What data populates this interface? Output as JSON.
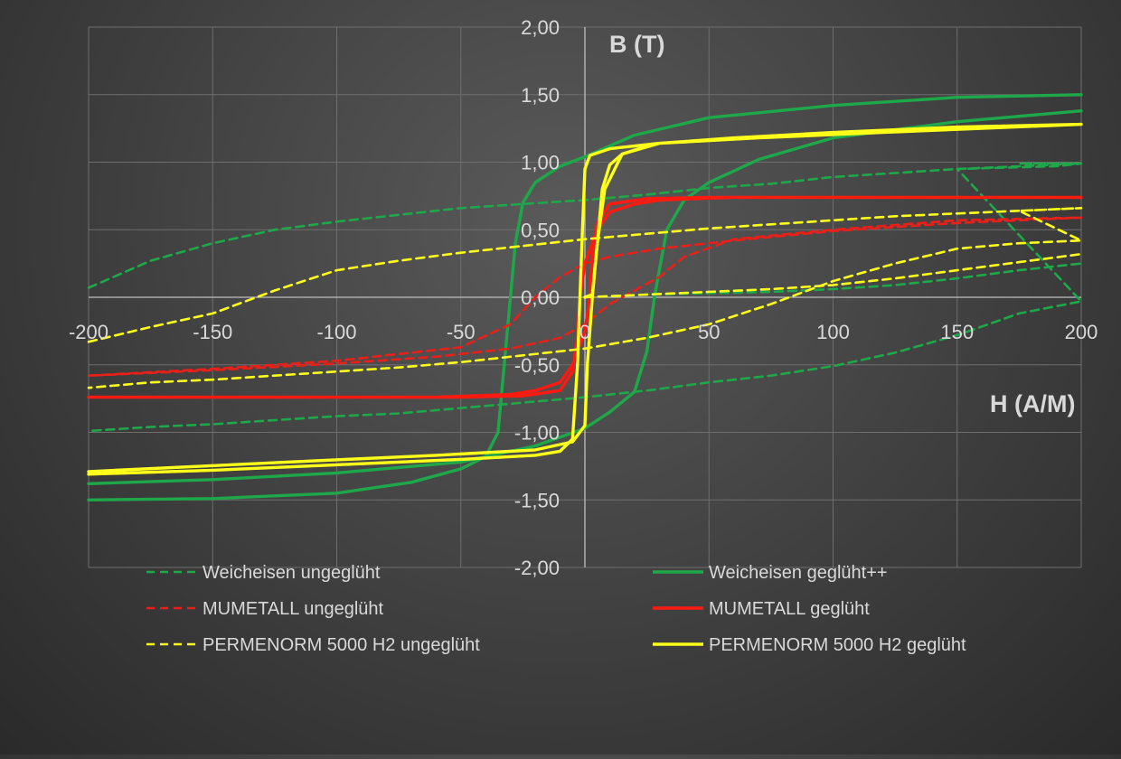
{
  "chart_data": {
    "type": "line",
    "title": "",
    "xlabel": "H (A/M)",
    "ylabel": "B (T)",
    "xlim": [
      -200,
      200
    ],
    "ylim": [
      -2,
      2
    ],
    "x_ticks": [
      -200,
      -150,
      -100,
      -50,
      0,
      50,
      100,
      150,
      200
    ],
    "x_tick_labels": [
      "-200",
      "-150",
      "-100",
      "-50",
      "0",
      "50",
      "100",
      "150",
      "200"
    ],
    "y_ticks": [
      2,
      1.5,
      1,
      0.5,
      0,
      -0.5,
      -1,
      -1.5,
      -2
    ],
    "y_tick_labels": [
      "2,00",
      "1,50",
      "1,00",
      "0,50",
      "0,00",
      "-0,50",
      "-1,00",
      "-1,50",
      "-2,00"
    ],
    "grid": true,
    "legend_position": "bottom",
    "series": [
      {
        "name": "Weicheisen ungeglüht",
        "color": "#1ea84a",
        "dash": "dashed",
        "points": [
          [
            -200,
            0.07
          ],
          [
            -175,
            0.27
          ],
          [
            -150,
            0.4
          ],
          [
            -125,
            0.5
          ],
          [
            -100,
            0.56
          ],
          [
            -75,
            0.61
          ],
          [
            -50,
            0.66
          ],
          [
            -25,
            0.69
          ],
          [
            0,
            0.72
          ],
          [
            25,
            0.76
          ],
          [
            50,
            0.81
          ],
          [
            75,
            0.84
          ],
          [
            100,
            0.89
          ],
          [
            125,
            0.92
          ],
          [
            150,
            0.95
          ],
          [
            175,
            0.97
          ],
          [
            200,
            0.99
          ],
          [
            175,
            0.99
          ],
          [
            200,
            0.99
          ],
          [
            190,
            0.97
          ],
          [
            150,
            0.95
          ],
          [
            200,
            -0.03
          ],
          [
            175,
            -0.12
          ],
          [
            150,
            -0.28
          ],
          [
            125,
            -0.41
          ],
          [
            100,
            -0.51
          ],
          [
            75,
            -0.58
          ],
          [
            50,
            -0.63
          ],
          [
            25,
            -0.69
          ],
          [
            0,
            -0.74
          ],
          [
            -25,
            -0.78
          ],
          [
            -50,
            -0.82
          ],
          [
            -75,
            -0.86
          ],
          [
            -100,
            -0.88
          ],
          [
            -125,
            -0.91
          ],
          [
            -150,
            -0.94
          ],
          [
            -175,
            -0.96
          ],
          [
            -200,
            -0.99
          ]
        ]
      },
      {
        "name": "Weicheisen ungeglüht (Neukurve)",
        "color": "#1ea84a",
        "dash": "dashed",
        "legend": false,
        "points": [
          [
            0,
            0.0
          ],
          [
            25,
            0.02
          ],
          [
            50,
            0.03
          ],
          [
            75,
            0.04
          ],
          [
            100,
            0.06
          ],
          [
            125,
            0.09
          ],
          [
            150,
            0.14
          ],
          [
            175,
            0.2
          ],
          [
            200,
            0.25
          ]
        ]
      },
      {
        "name": "Weicheisen geglüht++",
        "color": "#1ea84a",
        "dash": "solid",
        "points": [
          [
            -200,
            -1.5
          ],
          [
            -150,
            -1.49
          ],
          [
            -100,
            -1.45
          ],
          [
            -70,
            -1.37
          ],
          [
            -50,
            -1.27
          ],
          [
            -40,
            -1.18
          ],
          [
            -35,
            -1.0
          ],
          [
            -33,
            -0.6
          ],
          [
            -30,
            0.0
          ],
          [
            -28,
            0.4
          ],
          [
            -25,
            0.7
          ],
          [
            -20,
            0.85
          ],
          [
            -10,
            0.97
          ],
          [
            0,
            1.04
          ],
          [
            20,
            1.2
          ],
          [
            50,
            1.33
          ],
          [
            100,
            1.42
          ],
          [
            150,
            1.48
          ],
          [
            200,
            1.5
          ]
        ]
      },
      {
        "name": "Weicheisen geglüht++ (Rückweg)",
        "color": "#1ea84a",
        "dash": "solid",
        "legend": false,
        "points": [
          [
            200,
            1.38
          ],
          [
            150,
            1.3
          ],
          [
            100,
            1.18
          ],
          [
            70,
            1.02
          ],
          [
            50,
            0.85
          ],
          [
            40,
            0.72
          ],
          [
            33,
            0.5
          ],
          [
            30,
            0.2
          ],
          [
            28,
            0.0
          ],
          [
            25,
            -0.4
          ],
          [
            20,
            -0.7
          ],
          [
            10,
            -0.85
          ],
          [
            0,
            -0.97
          ],
          [
            -20,
            -1.1
          ],
          [
            -50,
            -1.22
          ],
          [
            -100,
            -1.3
          ],
          [
            -150,
            -1.35
          ],
          [
            -200,
            -1.38
          ]
        ]
      },
      {
        "name": "MUMETALL ungeglüht",
        "color": "#e8201a",
        "dash": "dashed",
        "points": [
          [
            -200,
            -0.58
          ],
          [
            -150,
            -0.53
          ],
          [
            -100,
            -0.47
          ],
          [
            -50,
            -0.37
          ],
          [
            -30,
            -0.2
          ],
          [
            -20,
            0.0
          ],
          [
            -10,
            0.15
          ],
          [
            0,
            0.25
          ],
          [
            10,
            0.3
          ],
          [
            30,
            0.36
          ],
          [
            60,
            0.42
          ],
          [
            100,
            0.49
          ],
          [
            150,
            0.55
          ],
          [
            200,
            0.59
          ],
          [
            150,
            0.57
          ],
          [
            100,
            0.5
          ],
          [
            60,
            0.43
          ],
          [
            40,
            0.3
          ],
          [
            30,
            0.15
          ],
          [
            20,
            0.05
          ],
          [
            10,
            -0.05
          ],
          [
            0,
            -0.2
          ],
          [
            -10,
            -0.3
          ],
          [
            -30,
            -0.38
          ],
          [
            -60,
            -0.44
          ],
          [
            -100,
            -0.49
          ],
          [
            -150,
            -0.54
          ],
          [
            -200,
            -0.58
          ]
        ]
      },
      {
        "name": "MUMETALL geglüht",
        "color": "#ff1a10",
        "dash": "solid",
        "points": [
          [
            -200,
            -0.74
          ],
          [
            -100,
            -0.74
          ],
          [
            -50,
            -0.74
          ],
          [
            -25,
            -0.73
          ],
          [
            -10,
            -0.69
          ],
          [
            -5,
            -0.55
          ],
          [
            -3,
            -0.3
          ],
          [
            -2,
            0.0
          ],
          [
            0,
            0.25
          ],
          [
            5,
            0.5
          ],
          [
            10,
            0.63
          ],
          [
            20,
            0.69
          ],
          [
            30,
            0.72
          ],
          [
            60,
            0.74
          ],
          [
            100,
            0.74
          ],
          [
            200,
            0.74
          ],
          [
            100,
            0.74
          ],
          [
            50,
            0.74
          ],
          [
            25,
            0.73
          ],
          [
            10,
            0.69
          ],
          [
            5,
            0.55
          ],
          [
            3,
            0.3
          ],
          [
            2,
            0.0
          ],
          [
            0,
            -0.25
          ],
          [
            -5,
            -0.5
          ],
          [
            -10,
            -0.63
          ],
          [
            -20,
            -0.69
          ],
          [
            -30,
            -0.72
          ],
          [
            -60,
            -0.74
          ],
          [
            -200,
            -0.74
          ]
        ]
      },
      {
        "name": "PERMENORM 5000 H2 ungeglüht",
        "color": "#ffff1a",
        "dash": "dashed",
        "points": [
          [
            -200,
            -0.33
          ],
          [
            -175,
            -0.22
          ],
          [
            -150,
            -0.12
          ],
          [
            -125,
            0.05
          ],
          [
            -100,
            0.2
          ],
          [
            -75,
            0.27
          ],
          [
            -50,
            0.33
          ],
          [
            -25,
            0.38
          ],
          [
            0,
            0.43
          ],
          [
            25,
            0.47
          ],
          [
            50,
            0.51
          ],
          [
            75,
            0.54
          ],
          [
            100,
            0.57
          ],
          [
            125,
            0.6
          ],
          [
            150,
            0.62
          ],
          [
            175,
            0.64
          ],
          [
            200,
            0.66
          ],
          [
            175,
            0.64
          ],
          [
            200,
            0.42
          ],
          [
            175,
            0.4
          ],
          [
            150,
            0.36
          ],
          [
            125,
            0.25
          ],
          [
            100,
            0.12
          ],
          [
            75,
            -0.05
          ],
          [
            50,
            -0.2
          ],
          [
            25,
            -0.3
          ],
          [
            0,
            -0.38
          ],
          [
            -25,
            -0.43
          ],
          [
            -50,
            -0.48
          ],
          [
            -75,
            -0.52
          ],
          [
            -100,
            -0.55
          ],
          [
            -125,
            -0.58
          ],
          [
            -150,
            -0.61
          ],
          [
            -175,
            -0.63
          ],
          [
            -200,
            -0.67
          ]
        ]
      },
      {
        "name": "PERMENORM 5000 H2 ungeglüht (Neukurve)",
        "color": "#ffff1a",
        "dash": "dashed",
        "legend": false,
        "points": [
          [
            0,
            0.0
          ],
          [
            25,
            0.02
          ],
          [
            50,
            0.04
          ],
          [
            75,
            0.06
          ],
          [
            100,
            0.09
          ],
          [
            125,
            0.14
          ],
          [
            150,
            0.2
          ],
          [
            175,
            0.26
          ],
          [
            200,
            0.32
          ]
        ]
      },
      {
        "name": "PERMENORM 5000 H2 geglüht",
        "color": "#ffff1a",
        "dash": "solid",
        "points": [
          [
            -200,
            -1.31
          ],
          [
            -150,
            -1.28
          ],
          [
            -100,
            -1.24
          ],
          [
            -50,
            -1.2
          ],
          [
            -20,
            -1.17
          ],
          [
            -10,
            -1.14
          ],
          [
            -5,
            -1.05
          ],
          [
            -3,
            -0.5
          ],
          [
            -2,
            0.0
          ],
          [
            -1,
            0.5
          ],
          [
            0,
            0.95
          ],
          [
            2,
            1.05
          ],
          [
            10,
            1.1
          ],
          [
            30,
            1.14
          ],
          [
            70,
            1.18
          ],
          [
            120,
            1.22
          ],
          [
            200,
            1.28
          ],
          [
            150,
            1.26
          ],
          [
            100,
            1.22
          ],
          [
            60,
            1.18
          ],
          [
            30,
            1.14
          ],
          [
            15,
            1.06
          ],
          [
            8,
            0.8
          ],
          [
            5,
            0.4
          ],
          [
            3,
            0.0
          ],
          [
            1,
            -0.5
          ],
          [
            0,
            -0.95
          ],
          [
            -5,
            -1.07
          ],
          [
            -20,
            -1.13
          ],
          [
            -60,
            -1.17
          ],
          [
            -120,
            -1.22
          ],
          [
            -200,
            -1.29
          ]
        ]
      },
      {
        "name": "PERMENORM 5000 H2 geglüht (Neukurve)",
        "color": "#ffff1a",
        "dash": "solid",
        "legend": false,
        "points": [
          [
            0,
            0.0
          ],
          [
            3,
            0.02
          ],
          [
            5,
            0.4
          ],
          [
            7,
            0.8
          ],
          [
            10,
            0.98
          ],
          [
            15,
            1.06
          ],
          [
            25,
            1.12
          ]
        ]
      }
    ],
    "legend": [
      {
        "label": "Weicheisen ungeglüht",
        "color": "#1ea84a",
        "dash": "dashed"
      },
      {
        "label": "Weicheisen geglüht++",
        "color": "#1ea84a",
        "dash": "solid"
      },
      {
        "label": "MUMETALL ungeglüht",
        "color": "#e8201a",
        "dash": "dashed"
      },
      {
        "label": "MUMETALL geglüht",
        "color": "#ff1a10",
        "dash": "solid"
      },
      {
        "label": "PERMENORM 5000 H2 ungeglüht",
        "color": "#ffff1a",
        "dash": "dashed"
      },
      {
        "label": "PERMENORM 5000 H2 geglüht",
        "color": "#ffff1a",
        "dash": "solid"
      }
    ]
  }
}
